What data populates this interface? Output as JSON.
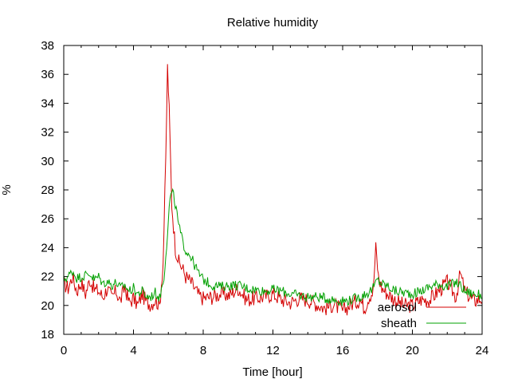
{
  "chart_data": {
    "type": "line",
    "title": "Relative humidity",
    "xlabel": "Time [hour]",
    "ylabel": "%",
    "xlim": [
      0,
      24
    ],
    "ylim": [
      18,
      38
    ],
    "xticks": [
      "0",
      "4",
      "8",
      "12",
      "16",
      "20",
      "24"
    ],
    "yticks": [
      "18",
      "20",
      "22",
      "24",
      "26",
      "28",
      "30",
      "32",
      "34",
      "36",
      "38"
    ],
    "grid": false,
    "legend_position": "bottom-right",
    "series": [
      {
        "name": "aerosol",
        "color": "#d40000",
        "x": [
          0,
          0.25,
          0.5,
          0.75,
          1,
          1.25,
          1.5,
          1.75,
          2,
          2.25,
          2.5,
          2.75,
          3,
          3.25,
          3.5,
          3.75,
          4,
          4.25,
          4.5,
          4.75,
          5,
          5.25,
          5.5,
          5.7,
          5.85,
          5.95,
          6.05,
          6.2,
          6.4,
          6.6,
          6.8,
          7,
          7.25,
          7.5,
          7.75,
          8,
          8.5,
          9,
          9.5,
          10,
          10.5,
          11,
          11.5,
          12,
          12.5,
          13,
          13.5,
          14,
          14.5,
          15,
          15.5,
          16,
          16.5,
          17,
          17.25,
          17.5,
          17.75,
          17.9,
          18.05,
          18.25,
          18.5,
          19,
          19.5,
          20,
          20.5,
          21,
          21.5,
          22,
          22.5,
          22.75,
          23,
          23.5,
          24
        ],
        "y": [
          21.5,
          21.2,
          22.0,
          21.0,
          21.6,
          20.8,
          21.8,
          21.1,
          21.0,
          20.6,
          21.2,
          20.5,
          21.0,
          20.3,
          21.3,
          20.2,
          20.5,
          20.0,
          20.8,
          20.2,
          20.1,
          20.4,
          20.0,
          23.0,
          30.0,
          36.5,
          33.5,
          27.0,
          24.0,
          23.0,
          22.6,
          22.0,
          21.7,
          21.2,
          20.7,
          20.5,
          20.6,
          20.8,
          20.7,
          21.2,
          20.4,
          20.5,
          20.6,
          20.8,
          20.4,
          20.2,
          20.5,
          20.4,
          20.1,
          19.8,
          20.1,
          19.6,
          20.1,
          20.4,
          19.8,
          20.6,
          21.0,
          24.0,
          22.0,
          21.2,
          20.9,
          20.4,
          20.0,
          20.0,
          20.4,
          20.4,
          21.0,
          21.6,
          20.6,
          22.2,
          21.0,
          20.3,
          20.5
        ]
      },
      {
        "name": "sheath",
        "color": "#00a000",
        "x": [
          0,
          0.25,
          0.5,
          0.75,
          1,
          1.25,
          1.5,
          1.75,
          2,
          2.25,
          2.5,
          2.75,
          3,
          3.25,
          3.5,
          3.75,
          4,
          4.25,
          4.5,
          4.75,
          5,
          5.25,
          5.5,
          5.75,
          5.95,
          6.1,
          6.25,
          6.4,
          6.6,
          6.8,
          7,
          7.25,
          7.5,
          7.75,
          8,
          8.5,
          9,
          9.5,
          10,
          10.5,
          11,
          11.5,
          12,
          12.5,
          13,
          13.5,
          14,
          14.5,
          15,
          15.5,
          16,
          16.5,
          17,
          17.5,
          17.75,
          18,
          18.25,
          18.5,
          19,
          19.5,
          20,
          20.5,
          21,
          21.5,
          22,
          22.5,
          22.75,
          23,
          23.5,
          24
        ],
        "y": [
          21.8,
          22.0,
          22.4,
          21.9,
          22.0,
          22.1,
          22.2,
          21.8,
          22.0,
          21.5,
          21.7,
          21.4,
          21.6,
          21.2,
          21.4,
          21.0,
          21.2,
          20.8,
          21.0,
          20.6,
          20.6,
          20.9,
          20.5,
          22.0,
          25.0,
          27.5,
          27.8,
          27.0,
          25.5,
          24.5,
          23.8,
          23.5,
          22.8,
          22.2,
          21.8,
          21.4,
          21.3,
          21.4,
          21.4,
          21.2,
          21.1,
          21.0,
          21.1,
          21.0,
          20.8,
          20.7,
          20.6,
          20.6,
          20.5,
          20.4,
          20.3,
          20.4,
          20.6,
          20.9,
          21.2,
          21.8,
          21.5,
          21.4,
          21.0,
          20.9,
          20.8,
          21.0,
          21.3,
          21.5,
          21.3,
          21.6,
          21.4,
          21.0,
          20.8,
          20.7
        ]
      }
    ]
  }
}
